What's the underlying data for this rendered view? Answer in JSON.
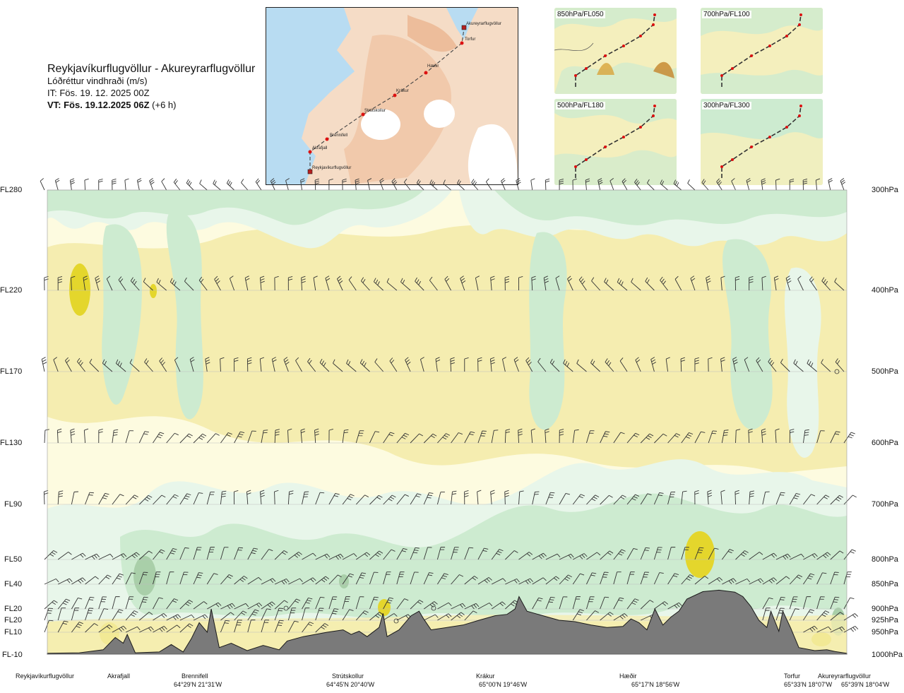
{
  "header": {
    "route_title": "Reykjavíkurflugvöllur - Akureyrarflugvöllur",
    "parameter": "Lóðréttur vindhraði (m/s)",
    "initial_time": "IT: Fös. 19. 12. 2025 00Z",
    "valid_time": "VT: Fös. 19.12.2025 06Z",
    "lead_time": "(+6 h)"
  },
  "route_map": {
    "waypoints": [
      "Akureyrarflugvöllur",
      "Torfur",
      "Hæðir",
      "Krákur",
      "Strútskollur",
      "Brennifell",
      "Akrafjall",
      "Reykjavíkurflugvöllur"
    ]
  },
  "level_panels": [
    {
      "label": "850hPa/FL050"
    },
    {
      "label": "700hPa/FL100"
    },
    {
      "label": "500hPa/FL180"
    },
    {
      "label": "300hPa/FL300"
    }
  ],
  "chart_data": {
    "type": "heatmap",
    "title": "Lóðréttur vindhraði (m/s)",
    "x_axis": "route distance, Reykjavíkurflugvöllur (0) to Akureyrarflugvöllur (1)",
    "y_axis": "pressure (hPa)",
    "levels": [
      {
        "fl": "FL280",
        "hpa": 300,
        "hpa_label": "300hPa"
      },
      {
        "fl": "FL220",
        "hpa": 400,
        "hpa_label": "400hPa"
      },
      {
        "fl": "FL170",
        "hpa": 500,
        "hpa_label": "500hPa"
      },
      {
        "fl": "FL130",
        "hpa": 600,
        "hpa_label": "600hPa"
      },
      {
        "fl": "FL90",
        "hpa": 700,
        "hpa_label": "700hPa"
      },
      {
        "fl": "FL50",
        "hpa": 800,
        "hpa_label": "800hPa"
      },
      {
        "fl": "FL40",
        "hpa": 850,
        "hpa_label": "850hPa"
      },
      {
        "fl": "FL20",
        "hpa": 900,
        "hpa_label": "900hPa"
      },
      {
        "fl": "FL20",
        "hpa": 925,
        "hpa_label": "925hPa"
      },
      {
        "fl": "FL10",
        "hpa": 950,
        "hpa_label": "950hPa"
      },
      {
        "fl": "FL-10",
        "hpa": 1000,
        "hpa_label": "1000hPa"
      }
    ],
    "stations": [
      {
        "name": "Reykjavíkurflugvöllur",
        "coords": "",
        "pos": 0.0
      },
      {
        "name": "Akrafjall",
        "coords": "",
        "pos": 0.09
      },
      {
        "name": "Brennifell",
        "coords": "64°29'N 21°31'W",
        "pos": 0.18
      },
      {
        "name": "Strútskollur",
        "coords": "64°45'N 20°40'W",
        "pos": 0.375
      },
      {
        "name": "Krákur",
        "coords": "65°00'N 19°46'W",
        "pos": 0.565
      },
      {
        "name": "Hæðir",
        "coords": "65°17'N 18°56'W",
        "pos": 0.76
      },
      {
        "name": "Torfur",
        "coords": "65°33'N 18°07'W",
        "pos": 0.96
      },
      {
        "name": "Akureyrarflugvöllur",
        "coords": "65°39'N 18°04'W",
        "pos": 1.0
      }
    ],
    "fill_colors": {
      "strong_down": "#a9cfa9",
      "down": "#cdebd0",
      "weak_down": "#e8f6ea",
      "neutral": "#fdfbe0",
      "weak_up": "#f5edb0",
      "up": "#f1e85e",
      "strong_up": "#e4d62c",
      "terrain": "#7a7a7a",
      "terrain_edge": "#1a1a1a"
    },
    "terrain_profile_hpa": [
      [
        0.0,
        998
      ],
      [
        0.04,
        997
      ],
      [
        0.07,
        990
      ],
      [
        0.085,
        962
      ],
      [
        0.095,
        975
      ],
      [
        0.1,
        955
      ],
      [
        0.11,
        997
      ],
      [
        0.14,
        995
      ],
      [
        0.155,
        978
      ],
      [
        0.17,
        995
      ],
      [
        0.18,
        965
      ],
      [
        0.19,
        930
      ],
      [
        0.2,
        950
      ],
      [
        0.205,
        900
      ],
      [
        0.215,
        985
      ],
      [
        0.23,
        975
      ],
      [
        0.25,
        992
      ],
      [
        0.27,
        980
      ],
      [
        0.29,
        990
      ],
      [
        0.3,
        970
      ],
      [
        0.32,
        960
      ],
      [
        0.35,
        950
      ],
      [
        0.37,
        945
      ],
      [
        0.38,
        955
      ],
      [
        0.39,
        948
      ],
      [
        0.4,
        960
      ],
      [
        0.415,
        940
      ],
      [
        0.42,
        910
      ],
      [
        0.425,
        960
      ],
      [
        0.44,
        945
      ],
      [
        0.455,
        915
      ],
      [
        0.465,
        905
      ],
      [
        0.47,
        920
      ],
      [
        0.48,
        945
      ],
      [
        0.5,
        940
      ],
      [
        0.52,
        935
      ],
      [
        0.54,
        925
      ],
      [
        0.56,
        915
      ],
      [
        0.575,
        912
      ],
      [
        0.585,
        900
      ],
      [
        0.59,
        875
      ],
      [
        0.6,
        905
      ],
      [
        0.62,
        915
      ],
      [
        0.64,
        925
      ],
      [
        0.66,
        928
      ],
      [
        0.68,
        935
      ],
      [
        0.7,
        940
      ],
      [
        0.72,
        938
      ],
      [
        0.73,
        922
      ],
      [
        0.74,
        930
      ],
      [
        0.75,
        945
      ],
      [
        0.76,
        900
      ],
      [
        0.77,
        935
      ],
      [
        0.78,
        918
      ],
      [
        0.79,
        905
      ],
      [
        0.8,
        880
      ],
      [
        0.82,
        865
      ],
      [
        0.84,
        862
      ],
      [
        0.86,
        866
      ],
      [
        0.87,
        875
      ],
      [
        0.88,
        895
      ],
      [
        0.89,
        925
      ],
      [
        0.9,
        940
      ],
      [
        0.905,
        905
      ],
      [
        0.915,
        948
      ],
      [
        0.92,
        905
      ],
      [
        0.93,
        942
      ],
      [
        0.94,
        985
      ],
      [
        0.96,
        992
      ],
      [
        0.975,
        990
      ],
      [
        0.985,
        994
      ],
      [
        1.0,
        998
      ]
    ],
    "wind_barb_levels_hpa": [
      300,
      400,
      500,
      600,
      700,
      800,
      850,
      900,
      925,
      950
    ]
  }
}
